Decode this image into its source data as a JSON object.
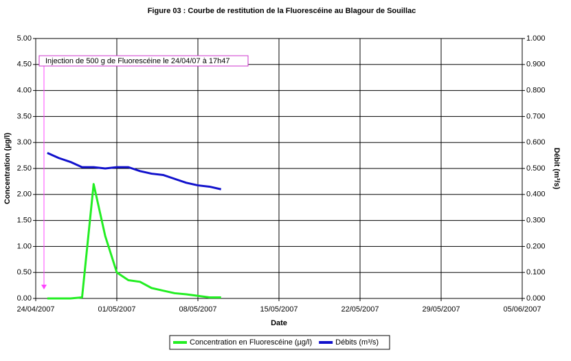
{
  "chart_data": {
    "type": "line",
    "title": "Figure 03 : Courbe de restitution de la Fluorescéine au Blagour de Souillac",
    "x_label": "Date",
    "y_label": "Concentration (µg/l)",
    "y2_label": "Débit (m³/s)",
    "annotation": "Injection de 500 g de Fluorescéine le 24/04/07 à 17h47",
    "grid": true,
    "legend": "bottom",
    "xlim": [
      "2007-04-24",
      "2007-06-05"
    ],
    "xticks": [
      {
        "value": "2007-04-24",
        "label": "24/04/2007"
      },
      {
        "value": "2007-05-01",
        "label": "01/05/2007"
      },
      {
        "value": "2007-05-08",
        "label": "08/05/2007"
      },
      {
        "value": "2007-05-15",
        "label": "15/05/2007"
      },
      {
        "value": "2007-05-22",
        "label": "22/05/2007"
      },
      {
        "value": "2007-05-29",
        "label": "29/05/2007"
      },
      {
        "value": "2007-06-05",
        "label": "05/06/2007"
      }
    ],
    "ylim": [
      0,
      5
    ],
    "yticks": [
      {
        "value": 0,
        "label": "0.00"
      },
      {
        "value": 0.5,
        "label": "0.50"
      },
      {
        "value": 1,
        "label": "1.00"
      },
      {
        "value": 1.5,
        "label": "1.50"
      },
      {
        "value": 2,
        "label": "2.00"
      },
      {
        "value": 2.5,
        "label": "2.50"
      },
      {
        "value": 3,
        "label": "3.00"
      },
      {
        "value": 3.5,
        "label": "3.50"
      },
      {
        "value": 4,
        "label": "4.00"
      },
      {
        "value": 4.5,
        "label": "4.50"
      },
      {
        "value": 5,
        "label": "5.00"
      }
    ],
    "y2lim": [
      0,
      1
    ],
    "y2ticks": [
      {
        "value": 0,
        "label": "0.000"
      },
      {
        "value": 0.1,
        "label": "0.100"
      },
      {
        "value": 0.2,
        "label": "0.200"
      },
      {
        "value": 0.3,
        "label": "0.300"
      },
      {
        "value": 0.4,
        "label": "0.400"
      },
      {
        "value": 0.5,
        "label": "0.500"
      },
      {
        "value": 0.6,
        "label": "0.600"
      },
      {
        "value": 0.7,
        "label": "0.700"
      },
      {
        "value": 0.8,
        "label": "0.800"
      },
      {
        "value": 0.9,
        "label": "0.900"
      },
      {
        "value": 1,
        "label": "1.000"
      }
    ],
    "x": [
      "2007-04-25",
      "2007-04-26",
      "2007-04-27",
      "2007-04-28",
      "2007-04-29",
      "2007-04-30",
      "2007-05-01",
      "2007-05-02",
      "2007-05-03",
      "2007-05-04",
      "2007-05-05",
      "2007-05-06",
      "2007-05-07",
      "2007-05-08",
      "2007-05-09",
      "2007-05-10"
    ],
    "series": [
      {
        "name": "Concentration en Fluorescéine (µg/l)",
        "color": "#22ee22",
        "values": [
          0,
          0,
          0,
          0.02,
          2.2,
          1.2,
          0.5,
          0.35,
          0.32,
          0.2,
          0.15,
          0.1,
          0.08,
          0.05,
          0.02,
          0.02
        ]
      },
      {
        "name": "Débits (m³/s)",
        "color": "#1111cc",
        "axis": "y2",
        "values": [
          0.56,
          0.54,
          0.525,
          0.505,
          0.505,
          0.5,
          0.505,
          0.505,
          0.49,
          0.48,
          0.475,
          0.46,
          0.445,
          0.435,
          0.43,
          0.42
        ]
      }
    ]
  }
}
